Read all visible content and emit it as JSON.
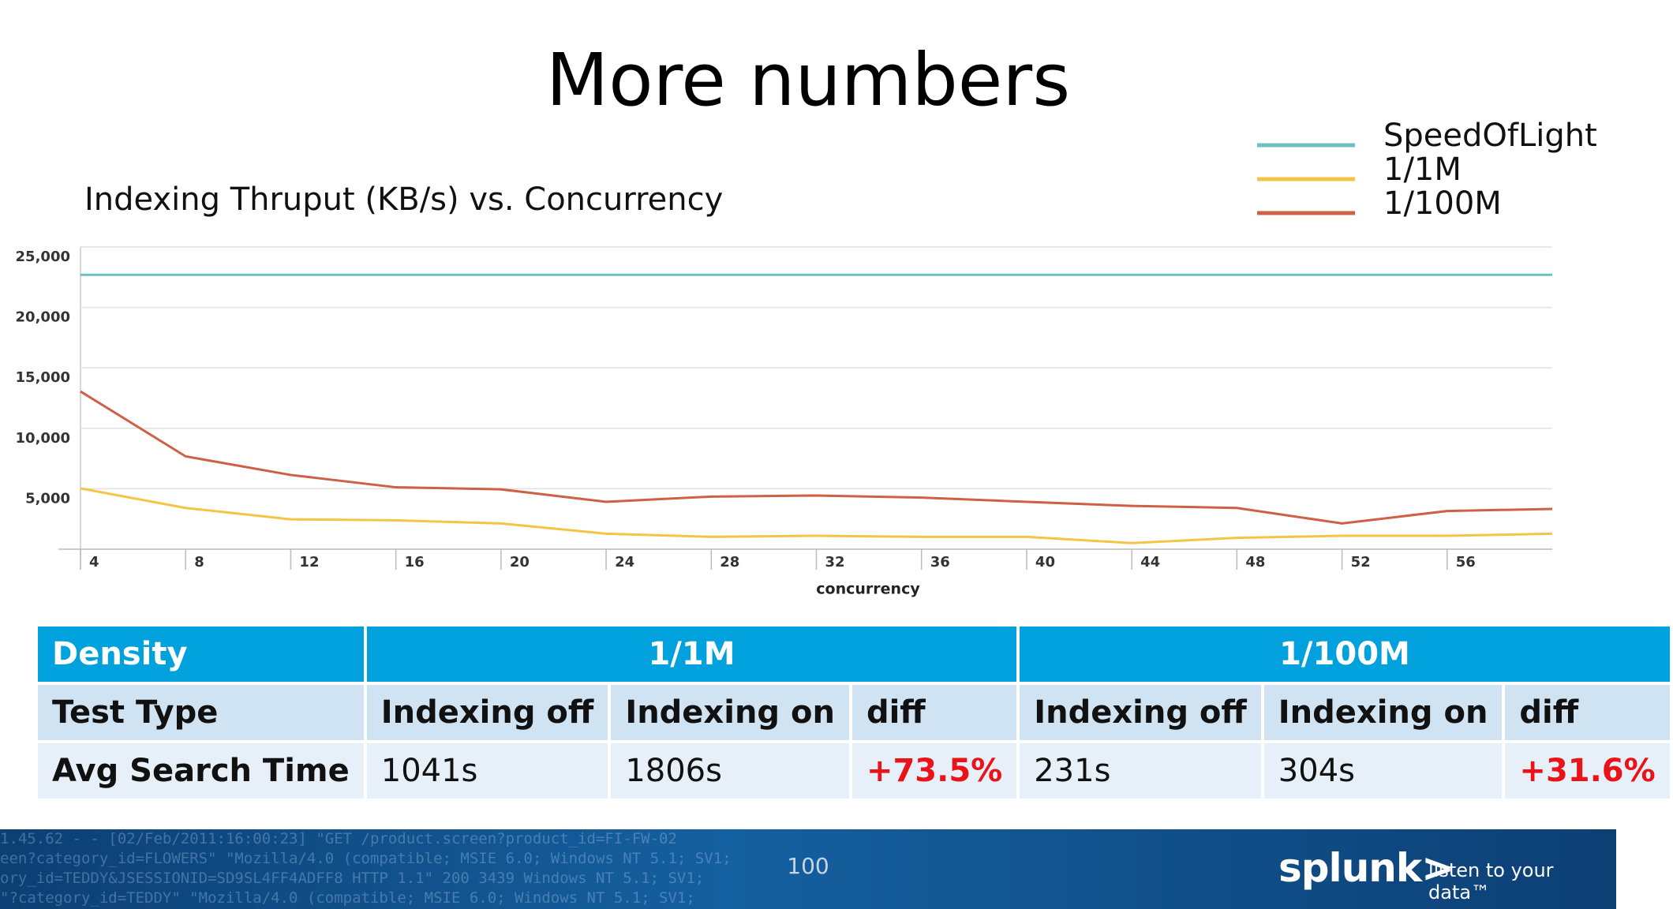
{
  "slide_title": "More numbers",
  "chart_data": {
    "type": "line",
    "title": "Indexing Thruput (KB/s) vs. Concurrency",
    "x_label": "concurrency",
    "x": [
      4,
      8,
      12,
      16,
      20,
      24,
      28,
      32,
      36,
      40,
      44,
      48,
      52,
      56,
      60
    ],
    "xlim": [
      4,
      60
    ],
    "xticks": [
      4,
      8,
      12,
      16,
      20,
      24,
      28,
      32,
      36,
      40,
      44,
      48,
      52,
      56
    ],
    "ylim": [
      0,
      25000
    ],
    "yticks": [
      {
        "value": 5000,
        "label": "5,000"
      },
      {
        "value": 10000,
        "label": "10,000"
      },
      {
        "value": 15000,
        "label": "15,000"
      },
      {
        "value": 20000,
        "label": "20,000"
      },
      {
        "value": 25000,
        "label": "25,000"
      }
    ],
    "grid": true,
    "legend": "top-right",
    "series": [
      {
        "name": "SpeedOfLight",
        "color": "#6cbfc2",
        "values": [
          22700,
          22700,
          22700,
          22700,
          22700,
          22700,
          22700,
          22700,
          22700,
          22700,
          22700,
          22700,
          22700,
          22700,
          22700
        ]
      },
      {
        "name": "1/1M",
        "color": "#f5c445",
        "values": [
          5030,
          3410,
          2470,
          2390,
          2130,
          1280,
          1020,
          1110,
          1020,
          1020,
          510,
          940,
          1110,
          1110,
          1280
        ]
      },
      {
        "name": "1/100M",
        "color": "#cf5f45",
        "values": [
          13050,
          7680,
          6140,
          5120,
          4950,
          3920,
          4350,
          4440,
          4270,
          3920,
          3580,
          3410,
          2130,
          3160,
          3330
        ]
      }
    ]
  },
  "table": {
    "header": [
      "Density",
      "1/1M",
      "1/100M"
    ],
    "rows": [
      [
        "Test Type",
        "Indexing off",
        "Indexing on",
        "diff",
        "Indexing off",
        "Indexing on",
        "diff"
      ],
      [
        "Avg Search Time",
        "1041s",
        "1806s",
        "+73.5%",
        "231s",
        "304s",
        "+31.6%"
      ]
    ]
  },
  "footer": {
    "page_number": "100",
    "logo": "splunk>",
    "tagline": "listen to your data™",
    "background_text": [
      "1.45.62 - - [02/Feb/2011:16:00:23] \"GET /product.screen?product_id=FI-FW-02",
      "een?category_id=FLOWERS\" \"Mozilla/4.0 (compatible; MSIE 6.0; Windows NT 5.1; SV1;",
      "ory_id=TEDDY&JSESSIONID=SD9SL4FF4ADFF8 HTTP 1.1\" 200 3439 Windows NT 5.1; SV1;",
      "\"?category_id=TEDDY\" \"Mozilla/4.0 (compatible; MSIE 6.0; Windows NT 5.1; SV1;"
    ]
  }
}
